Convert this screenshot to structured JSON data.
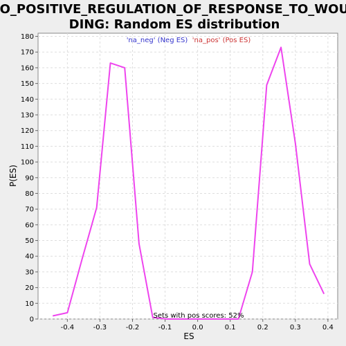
{
  "chart_data": {
    "type": "line",
    "title_line1": "GO_POSITIVE_REGULATION_OF_RESPONSE_TO_WOUN",
    "title_line2": "DING: Random ES distribution",
    "xlabel": "ES",
    "ylabel": "P(ES)",
    "xlim": [
      -0.49,
      0.43
    ],
    "ylim": [
      0,
      182
    ],
    "x_ticks": [
      "-0.4",
      "-0.3",
      "-0.2",
      "-0.1",
      "0.0",
      "0.1",
      "0.2",
      "0.3",
      "0.4"
    ],
    "x_tick_values": [
      -0.4,
      -0.3,
      -0.2,
      -0.1,
      0.0,
      0.1,
      0.2,
      0.3,
      0.4
    ],
    "y_ticks": [
      "0",
      "10",
      "20",
      "30",
      "40",
      "50",
      "60",
      "70",
      "80",
      "90",
      "100",
      "110",
      "120",
      "130",
      "140",
      "150",
      "160",
      "170",
      "180"
    ],
    "y_tick_values": [
      0,
      10,
      20,
      30,
      40,
      50,
      60,
      70,
      80,
      90,
      100,
      110,
      120,
      130,
      140,
      150,
      160,
      170,
      180
    ],
    "grid": true,
    "legend_position": "top-center",
    "legend": [
      {
        "label": "'na_neg' (Neg ES)",
        "color": "#3333cc"
      },
      {
        "label": "'na_pos' (Pos ES)",
        "color": "#cc3333"
      }
    ],
    "annotation": "Sets with pos scores: 52%",
    "line_color": "#ee44ee",
    "series": [
      {
        "x": [
          -0.445,
          -0.4,
          -0.355,
          -0.31,
          -0.268,
          -0.224,
          -0.18,
          -0.138,
          -0.095,
          -0.05,
          0.0,
          0.05,
          0.085,
          0.125,
          0.168,
          0.212,
          0.256,
          0.3,
          0.344,
          0.388
        ],
        "y": [
          2,
          4,
          38,
          71,
          163,
          160,
          48,
          1,
          0,
          0,
          0,
          0,
          0,
          0,
          30,
          149,
          173,
          112,
          35,
          16
        ]
      }
    ]
  }
}
